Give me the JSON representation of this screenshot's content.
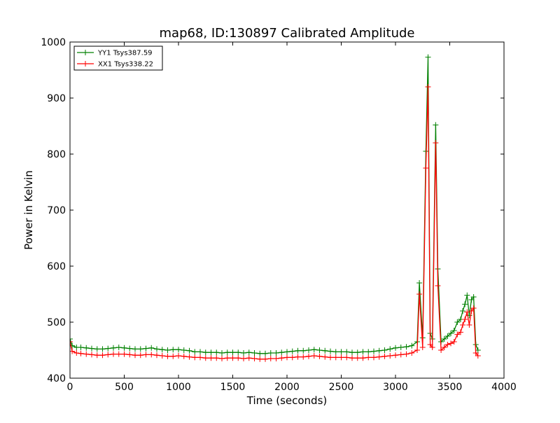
{
  "chart_data": {
    "type": "line",
    "title": "map68, ID:130897 Calibrated Amplitude",
    "xlabel": "Time (seconds)",
    "ylabel": "Power in Kelvin",
    "xlim": [
      0,
      4000
    ],
    "ylim": [
      400,
      1000
    ],
    "xticks": [
      0,
      500,
      1000,
      1500,
      2000,
      2500,
      3000,
      3500,
      4000
    ],
    "yticks": [
      400,
      500,
      600,
      700,
      800,
      900,
      1000
    ],
    "grid": false,
    "legend_position": "top-left",
    "marker": "+",
    "series": [
      {
        "name": "YY1 Tsys387.59",
        "color": "#008000",
        "x": [
          0,
          20,
          60,
          100,
          150,
          200,
          250,
          300,
          350,
          400,
          450,
          500,
          550,
          600,
          650,
          700,
          750,
          800,
          850,
          900,
          950,
          1000,
          1050,
          1100,
          1150,
          1200,
          1250,
          1300,
          1350,
          1400,
          1450,
          1500,
          1550,
          1600,
          1650,
          1700,
          1750,
          1800,
          1850,
          1900,
          1950,
          2000,
          2050,
          2100,
          2150,
          2200,
          2250,
          2300,
          2350,
          2400,
          2450,
          2500,
          2550,
          2600,
          2650,
          2700,
          2750,
          2800,
          2850,
          2900,
          2950,
          3000,
          3050,
          3100,
          3150,
          3200,
          3220,
          3250,
          3280,
          3300,
          3320,
          3340,
          3370,
          3390,
          3420,
          3450,
          3480,
          3510,
          3540,
          3570,
          3600,
          3620,
          3640,
          3660,
          3680,
          3700,
          3720,
          3740,
          3760
        ],
        "values": [
          470,
          458,
          455,
          455,
          454,
          453,
          452,
          452,
          453,
          454,
          455,
          454,
          453,
          452,
          452,
          453,
          454,
          452,
          451,
          450,
          451,
          451,
          450,
          449,
          447,
          447,
          446,
          446,
          446,
          445,
          446,
          446,
          446,
          445,
          446,
          445,
          444,
          444,
          445,
          445,
          446,
          447,
          448,
          449,
          449,
          450,
          451,
          450,
          449,
          448,
          447,
          447,
          447,
          446,
          446,
          447,
          447,
          448,
          449,
          450,
          452,
          454,
          455,
          456,
          458,
          465,
          570,
          472,
          805,
          973,
          480,
          470,
          852,
          595,
          465,
          470,
          475,
          480,
          485,
          500,
          505,
          520,
          532,
          548,
          512,
          540,
          545,
          460,
          450
        ]
      },
      {
        "name": "XX1 Tsys338.22",
        "color": "#ff0000",
        "x": [
          0,
          20,
          60,
          100,
          150,
          200,
          250,
          300,
          350,
          400,
          450,
          500,
          550,
          600,
          650,
          700,
          750,
          800,
          850,
          900,
          950,
          1000,
          1050,
          1100,
          1150,
          1200,
          1250,
          1300,
          1350,
          1400,
          1450,
          1500,
          1550,
          1600,
          1650,
          1700,
          1750,
          1800,
          1850,
          1900,
          1950,
          2000,
          2050,
          2100,
          2150,
          2200,
          2250,
          2300,
          2350,
          2400,
          2450,
          2500,
          2550,
          2600,
          2650,
          2700,
          2750,
          2800,
          2850,
          2900,
          2950,
          3000,
          3050,
          3100,
          3150,
          3200,
          3220,
          3250,
          3280,
          3300,
          3320,
          3340,
          3370,
          3390,
          3420,
          3450,
          3480,
          3510,
          3540,
          3570,
          3600,
          3620,
          3640,
          3660,
          3680,
          3700,
          3720,
          3740,
          3760
        ],
        "values": [
          465,
          448,
          445,
          444,
          443,
          442,
          441,
          441,
          442,
          443,
          443,
          443,
          442,
          441,
          441,
          442,
          442,
          441,
          440,
          439,
          439,
          440,
          439,
          438,
          437,
          437,
          436,
          436,
          436,
          435,
          436,
          436,
          436,
          435,
          436,
          435,
          434,
          434,
          435,
          435,
          436,
          437,
          437,
          438,
          438,
          439,
          440,
          439,
          438,
          437,
          437,
          437,
          437,
          436,
          436,
          436,
          437,
          437,
          438,
          439,
          440,
          441,
          442,
          443,
          445,
          450,
          550,
          455,
          775,
          920,
          460,
          455,
          820,
          565,
          450,
          455,
          460,
          462,
          465,
          478,
          482,
          495,
          505,
          518,
          495,
          520,
          525,
          445,
          440
        ]
      }
    ]
  }
}
